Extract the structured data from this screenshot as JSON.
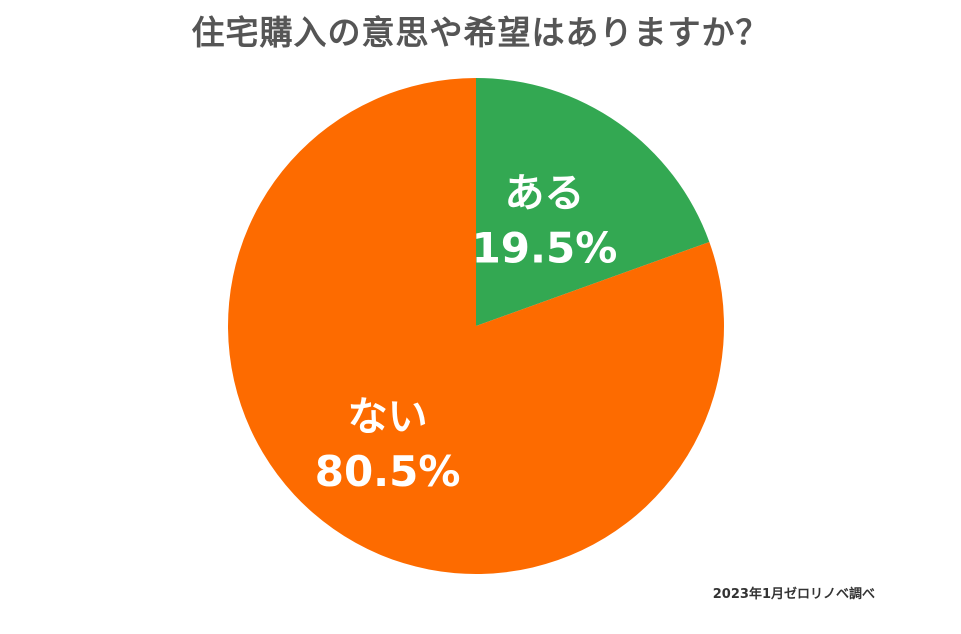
{
  "chart_data": {
    "type": "pie",
    "title": "住宅購入の意思や希望はありますか？",
    "slices": [
      {
        "label": "ある",
        "value": 19.5,
        "value_text": "19.5%",
        "color": "#33a852"
      },
      {
        "label": "ない",
        "value": 80.5,
        "value_text": "80.5%",
        "color": "#fd6b00"
      }
    ],
    "start": "12 o'clock",
    "direction": "clockwise",
    "legend": "none (labels on slices)"
  },
  "source": "2023年1月ゼロリノベ調べ"
}
